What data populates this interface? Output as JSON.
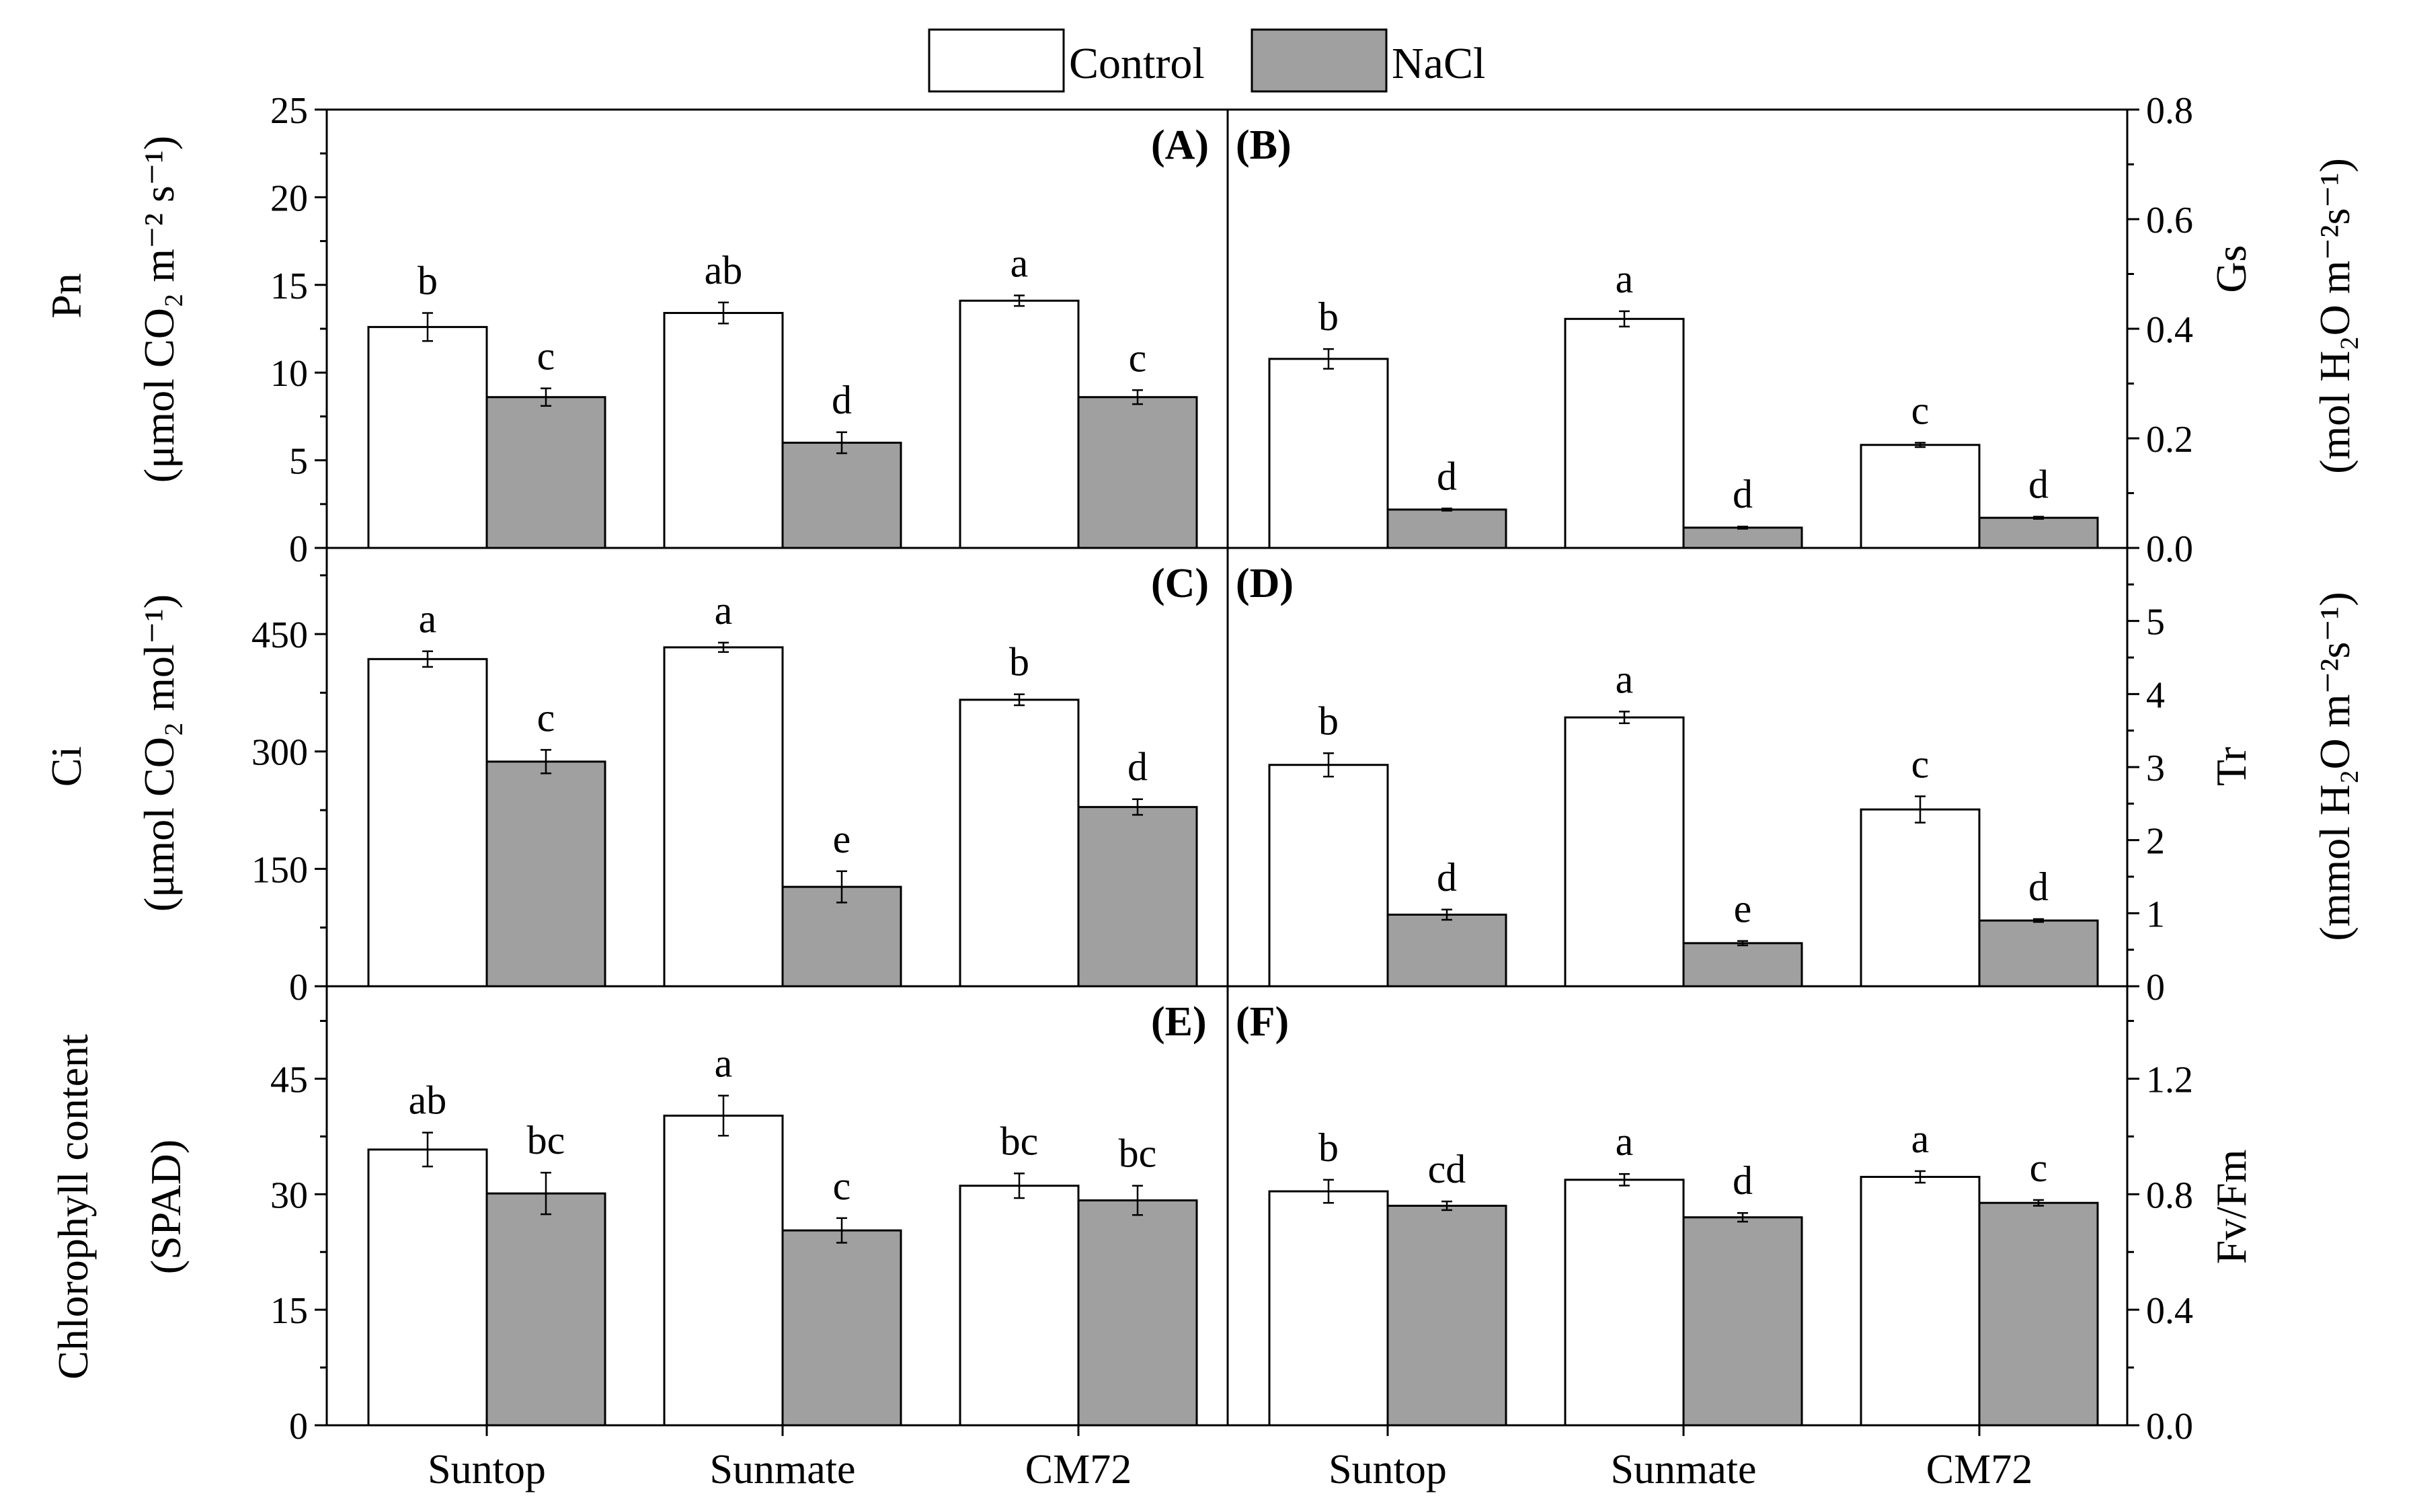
{
  "colors": {
    "control": "#ffffff",
    "nacl": "#a0a0a0"
  },
  "legend": [
    {
      "key": "control",
      "label": "Control"
    },
    {
      "key": "nacl",
      "label": "NaCl"
    }
  ],
  "chart_data": [
    {
      "type": "bar",
      "panel": "(A)",
      "column": 0,
      "row": 0,
      "ylabel": "Pn",
      "yunit": "(μmol CO₂ m⁻² s⁻¹)",
      "categories": [
        "Suntop",
        "Sunmate",
        "CM72"
      ],
      "ylim": [
        0,
        25
      ],
      "yticks": [
        "0",
        "5",
        "10",
        "15",
        "20",
        "25"
      ],
      "series": [
        {
          "name": "Control",
          "values": [
            12.6,
            13.4,
            14.1
          ],
          "errors": [
            0.8,
            0.6,
            0.3
          ],
          "letters": [
            "b",
            "ab",
            "a"
          ]
        },
        {
          "name": "NaCl",
          "values": [
            8.6,
            6.0,
            8.6
          ],
          "errors": [
            0.5,
            0.6,
            0.4
          ],
          "letters": [
            "c",
            "d",
            "c"
          ]
        }
      ]
    },
    {
      "type": "bar",
      "panel": "(B)",
      "column": 1,
      "row": 0,
      "ylabel": "Gs",
      "yunit": "(mol H₂O m⁻²s⁻¹)",
      "categories": [
        "Suntop",
        "Sunmate",
        "CM72"
      ],
      "ylim": [
        0,
        0.8
      ],
      "yticks": [
        "0.0",
        "0.2",
        "0.4",
        "0.6",
        "0.8"
      ],
      "series": [
        {
          "name": "Control",
          "values": [
            0.345,
            0.418,
            0.188
          ],
          "errors": [
            0.018,
            0.014,
            0.004
          ],
          "letters": [
            "b",
            "a",
            "c"
          ]
        },
        {
          "name": "NaCl",
          "values": [
            0.07,
            0.037,
            0.055
          ],
          "errors": [
            0.002,
            0.002,
            0.002
          ],
          "letters": [
            "d",
            "d",
            "d"
          ]
        }
      ]
    },
    {
      "type": "bar",
      "panel": "(C)",
      "column": 0,
      "row": 1,
      "ylabel": "Ci",
      "yunit": "(μmol CO₂ mol⁻¹)",
      "categories": [
        "Suntop",
        "Sunmate",
        "CM72"
      ],
      "ylim": [
        0,
        560
      ],
      "yticks": [
        "0",
        "150",
        "300",
        "450"
      ],
      "series": [
        {
          "name": "Control",
          "values": [
            418,
            433,
            366
          ],
          "errors": [
            10,
            6,
            7
          ],
          "letters": [
            "a",
            "a",
            "b"
          ]
        },
        {
          "name": "NaCl",
          "values": [
            287,
            127,
            229
          ],
          "errors": [
            15,
            20,
            10
          ],
          "letters": [
            "c",
            "e",
            "d"
          ]
        }
      ]
    },
    {
      "type": "bar",
      "panel": "(D)",
      "column": 1,
      "row": 1,
      "ylabel": "Tr",
      "yunit": "(mmol H₂O m⁻²s⁻¹)",
      "categories": [
        "Suntop",
        "Sunmate",
        "CM72"
      ],
      "ylim": [
        0,
        6
      ],
      "yticks": [
        "0",
        "1",
        "2",
        "3",
        "4",
        "5"
      ],
      "series": [
        {
          "name": "Control",
          "values": [
            3.03,
            3.68,
            2.42
          ],
          "errors": [
            0.16,
            0.08,
            0.18
          ],
          "letters": [
            "b",
            "a",
            "c"
          ]
        },
        {
          "name": "NaCl",
          "values": [
            0.98,
            0.59,
            0.9
          ],
          "errors": [
            0.07,
            0.03,
            0.02
          ],
          "letters": [
            "d",
            "e",
            "d"
          ]
        }
      ]
    },
    {
      "type": "bar",
      "panel": "(E)",
      "column": 0,
      "row": 2,
      "ylabel": "Chlorophyll content",
      "yunit": "(SPAD)",
      "categories": [
        "Suntop",
        "Sunmate",
        "CM72"
      ],
      "ylim": [
        0,
        57
      ],
      "yticks": [
        "0",
        "15",
        "30",
        "45"
      ],
      "series": [
        {
          "name": "Control",
          "values": [
            35.8,
            40.2,
            31.1
          ],
          "errors": [
            2.2,
            2.6,
            1.6
          ],
          "letters": [
            "ab",
            "a",
            "bc"
          ]
        },
        {
          "name": "NaCl",
          "values": [
            30.1,
            25.3,
            29.2
          ],
          "errors": [
            2.7,
            1.6,
            1.9
          ],
          "letters": [
            "bc",
            "c",
            "bc"
          ]
        }
      ]
    },
    {
      "type": "bar",
      "panel": "(F)",
      "column": 1,
      "row": 2,
      "ylabel": "Fv/Fm",
      "yunit": "",
      "categories": [
        "Suntop",
        "Sunmate",
        "CM72"
      ],
      "ylim": [
        0,
        1.52
      ],
      "yticks": [
        "0.0",
        "0.4",
        "0.8",
        "1.2"
      ],
      "series": [
        {
          "name": "Control",
          "values": [
            0.81,
            0.85,
            0.86
          ],
          "errors": [
            0.04,
            0.02,
            0.02
          ],
          "letters": [
            "b",
            "a",
            "a"
          ]
        },
        {
          "name": "NaCl",
          "values": [
            0.76,
            0.72,
            0.77
          ],
          "errors": [
            0.015,
            0.015,
            0.01
          ],
          "letters": [
            "cd",
            "d",
            "c"
          ]
        }
      ]
    }
  ]
}
